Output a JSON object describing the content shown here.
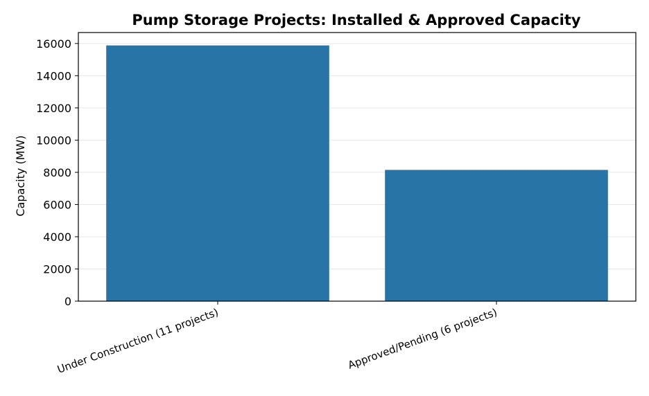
{
  "chart_data": {
    "type": "bar",
    "title": "Pump Storage Projects: Installed & Approved Capacity",
    "xlabel": "",
    "ylabel": "Capacity (MW)",
    "categories": [
      "Under Construction (11 projects)",
      "Approved/Pending (6 projects)"
    ],
    "values": [
      15880,
      8150
    ],
    "ylim": [
      0,
      16680
    ],
    "yticks": [
      0,
      2000,
      4000,
      6000,
      8000,
      10000,
      12000,
      14000,
      16000
    ],
    "grid": true,
    "legend": "none",
    "bar_color": "#2874a6"
  }
}
